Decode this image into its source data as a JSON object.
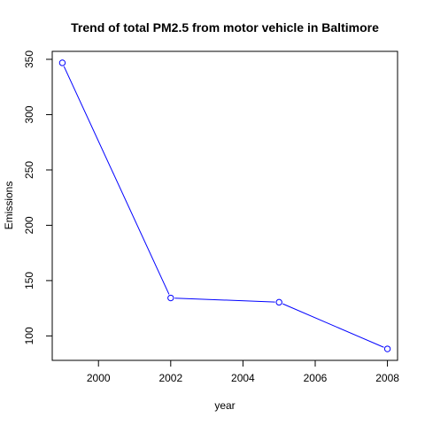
{
  "chart_data": {
    "type": "line",
    "title": "Trend of total PM2.5 from motor vehicle in Baltimore",
    "xlabel": "year",
    "ylabel": "Emissions",
    "x": [
      1999,
      2002,
      2005,
      2008
    ],
    "series": [
      {
        "values": [
          346.82,
          134.31,
          130.43,
          88.28
        ],
        "color": "#0000ff",
        "marker": "open-circle",
        "line": true
      }
    ],
    "x_ticks": [
      2000,
      2002,
      2004,
      2006,
      2008
    ],
    "x_tick_labels": [
      "2000",
      "2002",
      "2004",
      "2006",
      "2008"
    ],
    "y_ticks": [
      100,
      150,
      200,
      250,
      300,
      350
    ],
    "y_tick_labels": [
      "100",
      "150",
      "200",
      "250",
      "300",
      "350"
    ],
    "xlim": [
      1998.72,
      2008.28
    ],
    "ylim": [
      77.9,
      357.2
    ],
    "grid": false,
    "legend": "none"
  }
}
